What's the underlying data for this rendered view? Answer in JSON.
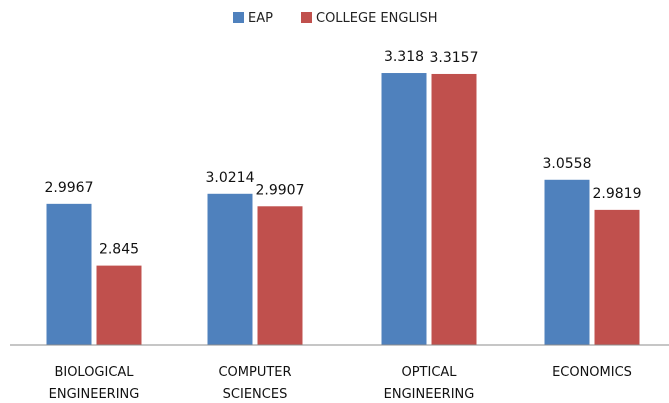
{
  "chart_data": {
    "type": "bar",
    "categories": [
      [
        "BIOLOGICAL",
        "ENGINEERING"
      ],
      [
        "COMPUTER",
        "SCIENCES"
      ],
      [
        "OPTICAL",
        "ENGINEERING"
      ],
      [
        "ECONOMICS"
      ]
    ],
    "series": [
      {
        "name": "EAP",
        "color": "#4f81bd",
        "values": [
          2.9967,
          3.0214,
          3.318,
          3.0558
        ],
        "labels": [
          "2.9967",
          "3.0214",
          "3.318",
          "3.0558"
        ]
      },
      {
        "name": "COLLEGE ENGLISH",
        "color": "#c0504d",
        "values": [
          2.845,
          2.9907,
          3.3157,
          2.9819
        ],
        "labels": [
          "2.845",
          "2.9907",
          "3.3157",
          "2.9819"
        ]
      }
    ],
    "ylim": [
      2.65,
      3.35
    ],
    "grid": false,
    "legend": "top-center"
  }
}
